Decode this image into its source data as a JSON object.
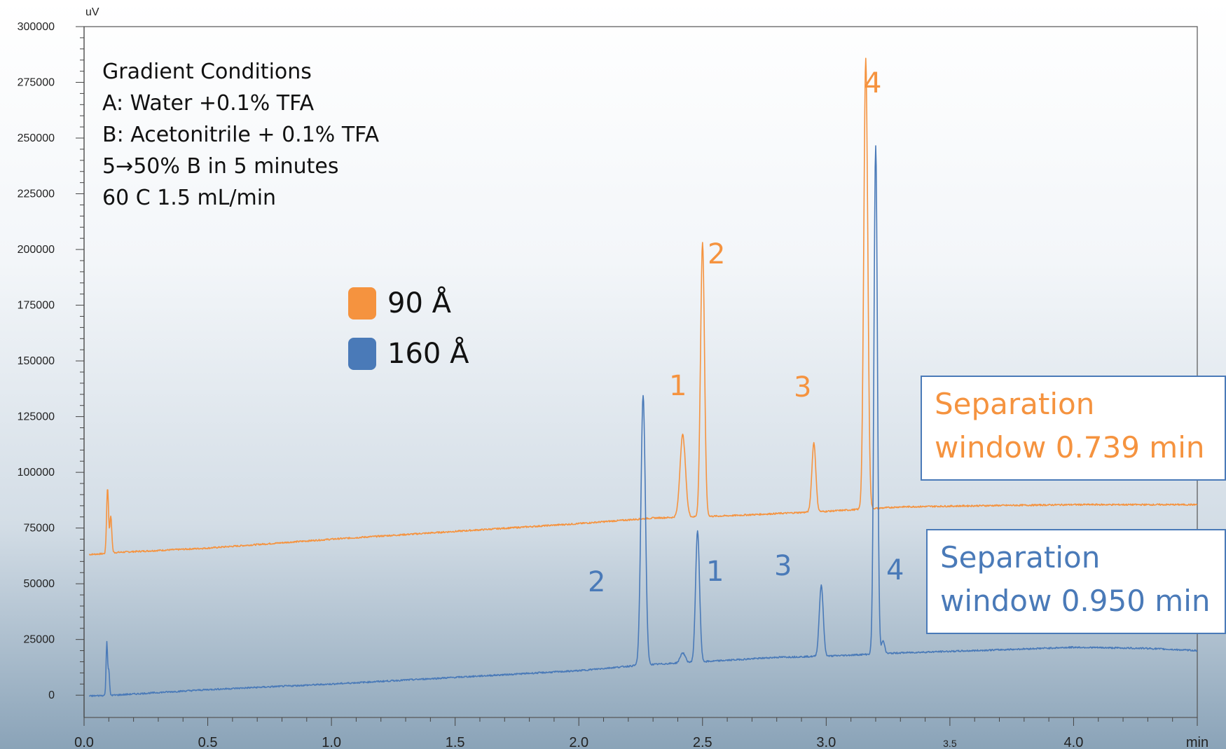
{
  "chart_data": {
    "type": "line",
    "ylabel": "uV",
    "xlabel": "min",
    "xlim": [
      0.0,
      4.5
    ],
    "ylim": [
      -10000,
      300000
    ],
    "y_ticks": [
      0,
      25000,
      50000,
      75000,
      100000,
      125000,
      150000,
      175000,
      200000,
      225000,
      250000,
      275000,
      300000
    ],
    "y_tick_labels": [
      "0",
      "25000",
      "50000",
      "75000",
      "100000",
      "125000",
      "150000",
      "175000",
      "200000",
      "225000",
      "250000",
      "275000",
      "300000"
    ],
    "x_ticks": [
      0.0,
      0.5,
      1.0,
      1.5,
      2.0,
      2.5,
      3.0,
      3.5,
      4.0,
      4.5
    ],
    "x_tick_labels": [
      "0.0",
      "0.5",
      "1.0",
      "1.5",
      "2.0",
      "2.5",
      "3.0",
      "3.5",
      "4.0",
      "min"
    ],
    "grid": false,
    "series": [
      {
        "name": "90 Å",
        "color": "#f5933f",
        "baseline": [
          [
            0.0,
            63000
          ],
          [
            0.08,
            63500
          ],
          [
            0.1,
            63000
          ],
          [
            0.12,
            64000
          ],
          [
            0.5,
            66000
          ],
          [
            1.0,
            70000
          ],
          [
            1.5,
            73500
          ],
          [
            2.0,
            77000
          ],
          [
            2.3,
            79500
          ],
          [
            2.6,
            80500
          ],
          [
            3.0,
            82500
          ],
          [
            3.3,
            84500
          ],
          [
            3.6,
            85000
          ],
          [
            4.0,
            85500
          ],
          [
            4.5,
            85500
          ]
        ],
        "peaks": [
          {
            "label": "",
            "x": 0.095,
            "height": 30000,
            "width": 0.004
          },
          {
            "label": "",
            "x": 0.108,
            "height": 17000,
            "width": 0.004
          },
          {
            "label": "1",
            "x": 2.42,
            "height": 37000,
            "width": 0.011
          },
          {
            "label": "2",
            "x": 2.5,
            "height": 123000,
            "width": 0.008
          },
          {
            "label": "3",
            "x": 2.95,
            "height": 31000,
            "width": 0.008
          },
          {
            "label": "4",
            "x": 3.16,
            "height": 202000,
            "width": 0.008
          }
        ]
      },
      {
        "name": "160 Å",
        "color": "#4a7ab8",
        "baseline": [
          [
            0.0,
            -500
          ],
          [
            0.1,
            0
          ],
          [
            0.12,
            0
          ],
          [
            0.5,
            2500
          ],
          [
            1.0,
            5000
          ],
          [
            1.5,
            8000
          ],
          [
            2.0,
            11000
          ],
          [
            2.25,
            13500
          ],
          [
            2.5,
            15000
          ],
          [
            2.8,
            17000
          ],
          [
            3.0,
            17500
          ],
          [
            3.3,
            19000
          ],
          [
            3.6,
            20000
          ],
          [
            4.0,
            21500
          ],
          [
            4.3,
            21000
          ],
          [
            4.5,
            20000
          ]
        ],
        "peaks": [
          {
            "label": "",
            "x": 0.092,
            "height": 24000,
            "width": 0.003
          },
          {
            "label": "",
            "x": 0.1,
            "height": 11000,
            "width": 0.003
          },
          {
            "label": "2",
            "x": 2.26,
            "height": 121000,
            "width": 0.009
          },
          {
            "label": "",
            "x": 2.42,
            "height": 4500,
            "width": 0.01
          },
          {
            "label": "1",
            "x": 2.48,
            "height": 59000,
            "width": 0.008
          },
          {
            "label": "3",
            "x": 2.98,
            "height": 32000,
            "width": 0.008
          },
          {
            "label": "4",
            "x": 3.2,
            "height": 228000,
            "width": 0.007
          },
          {
            "label": "",
            "x": 3.23,
            "height": 6000,
            "width": 0.006
          }
        ]
      }
    ]
  },
  "conditions": {
    "title": "Gradient Conditions",
    "line_a": "A: Water +0.1% TFA",
    "line_b": "B: Acetonitrile + 0.1% TFA",
    "line_gradient": "5→50% B in 5 minutes",
    "line_temp": "60 C  1.5 mL/min"
  },
  "legend": {
    "items": [
      {
        "label": "90 Å",
        "color": "#f5933f"
      },
      {
        "label": "160 Å",
        "color": "#4a7ab8"
      }
    ]
  },
  "separation": {
    "orange": {
      "line1": "Separation",
      "line2": "window 0.739 min",
      "color": "#f5933f"
    },
    "blue": {
      "line1": "Separation",
      "line2": "window 0.950 min",
      "color": "#4a7ab8"
    }
  },
  "peak_labels": {
    "orange": [
      "1",
      "2",
      "3",
      "4"
    ],
    "blue": [
      "2",
      "1",
      "3",
      "4"
    ]
  }
}
